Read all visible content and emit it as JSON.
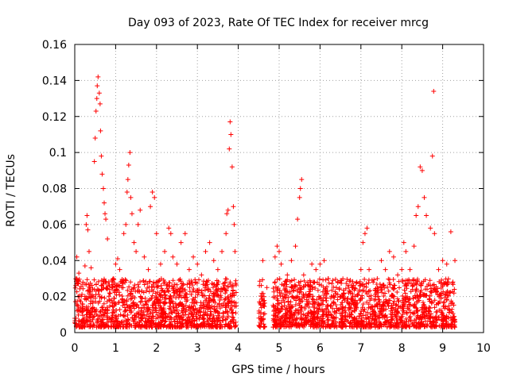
{
  "chart_data": {
    "type": "scatter",
    "title": "Day 093 of 2023, Rate Of TEC Index for receiver mrcg",
    "xlabel": "GPS time / hours",
    "ylabel": "ROTI / TECUs",
    "xlim": [
      0,
      10
    ],
    "ylim": [
      0,
      0.16
    ],
    "x_tick_labels": [
      "0",
      "1",
      "2",
      "3",
      "4",
      "5",
      "6",
      "7",
      "8",
      "9",
      "10"
    ],
    "y_tick_labels": [
      "0",
      "0.02",
      "0.04",
      "0.06",
      "0.08",
      "0.1",
      "0.12",
      "0.14",
      "0.16"
    ],
    "grid": true,
    "marker": "+",
    "series_color": "#ff0000",
    "series": [
      {
        "name": "ROTI",
        "points": [
          [
            0.05,
            0.042
          ],
          [
            0.1,
            0.033
          ],
          [
            0.12,
            0.018
          ],
          [
            0.2,
            0.028
          ],
          [
            0.25,
            0.037
          ],
          [
            0.28,
            0.06
          ],
          [
            0.3,
            0.065
          ],
          [
            0.32,
            0.057
          ],
          [
            0.35,
            0.045
          ],
          [
            0.38,
            0.025
          ],
          [
            0.4,
            0.036
          ],
          [
            0.45,
            0.02
          ],
          [
            0.48,
            0.095
          ],
          [
            0.5,
            0.108
          ],
          [
            0.52,
            0.123
          ],
          [
            0.54,
            0.13
          ],
          [
            0.55,
            0.137
          ],
          [
            0.57,
            0.142
          ],
          [
            0.6,
            0.133
          ],
          [
            0.62,
            0.127
          ],
          [
            0.63,
            0.112
          ],
          [
            0.65,
            0.098
          ],
          [
            0.67,
            0.088
          ],
          [
            0.7,
            0.08
          ],
          [
            0.72,
            0.072
          ],
          [
            0.74,
            0.066
          ],
          [
            0.76,
            0.063
          ],
          [
            0.8,
            0.052
          ],
          [
            0.85,
            0.022
          ],
          [
            0.9,
            0.018
          ],
          [
            0.95,
            0.03
          ],
          [
            1.0,
            0.038
          ],
          [
            1.05,
            0.041
          ],
          [
            1.1,
            0.035
          ],
          [
            1.15,
            0.025
          ],
          [
            1.2,
            0.055
          ],
          [
            1.25,
            0.06
          ],
          [
            1.28,
            0.078
          ],
          [
            1.3,
            0.085
          ],
          [
            1.32,
            0.093
          ],
          [
            1.35,
            0.1
          ],
          [
            1.37,
            0.075
          ],
          [
            1.4,
            0.066
          ],
          [
            1.45,
            0.05
          ],
          [
            1.5,
            0.045
          ],
          [
            1.55,
            0.06
          ],
          [
            1.6,
            0.068
          ],
          [
            1.7,
            0.042
          ],
          [
            1.8,
            0.035
          ],
          [
            1.85,
            0.07
          ],
          [
            1.9,
            0.078
          ],
          [
            1.95,
            0.075
          ],
          [
            2.0,
            0.055
          ],
          [
            2.1,
            0.038
          ],
          [
            2.2,
            0.045
          ],
          [
            2.3,
            0.058
          ],
          [
            2.35,
            0.055
          ],
          [
            2.4,
            0.042
          ],
          [
            2.5,
            0.038
          ],
          [
            2.6,
            0.05
          ],
          [
            2.7,
            0.055
          ],
          [
            2.8,
            0.035
          ],
          [
            2.9,
            0.042
          ],
          [
            3.0,
            0.038
          ],
          [
            3.1,
            0.032
          ],
          [
            3.2,
            0.045
          ],
          [
            3.3,
            0.05
          ],
          [
            3.4,
            0.04
          ],
          [
            3.5,
            0.035
          ],
          [
            3.6,
            0.045
          ],
          [
            3.7,
            0.055
          ],
          [
            3.72,
            0.066
          ],
          [
            3.75,
            0.068
          ],
          [
            3.78,
            0.102
          ],
          [
            3.8,
            0.117
          ],
          [
            3.82,
            0.11
          ],
          [
            3.85,
            0.092
          ],
          [
            3.88,
            0.07
          ],
          [
            3.9,
            0.06
          ],
          [
            3.92,
            0.045
          ],
          [
            4.6,
            0.04
          ],
          [
            4.7,
            0.025
          ],
          [
            4.9,
            0.042
          ],
          [
            4.95,
            0.048
          ],
          [
            5.0,
            0.045
          ],
          [
            5.05,
            0.038
          ],
          [
            5.2,
            0.032
          ],
          [
            5.3,
            0.04
          ],
          [
            5.4,
            0.048
          ],
          [
            5.45,
            0.063
          ],
          [
            5.5,
            0.075
          ],
          [
            5.52,
            0.08
          ],
          [
            5.55,
            0.085
          ],
          [
            5.6,
            0.032
          ],
          [
            5.7,
            0.028
          ],
          [
            5.8,
            0.038
          ],
          [
            5.9,
            0.035
          ],
          [
            6.0,
            0.038
          ],
          [
            6.1,
            0.04
          ],
          [
            6.2,
            0.03
          ],
          [
            6.4,
            0.025
          ],
          [
            6.5,
            0.02
          ],
          [
            6.6,
            0.018
          ],
          [
            6.7,
            0.022
          ],
          [
            6.8,
            0.025
          ],
          [
            6.9,
            0.028
          ],
          [
            7.0,
            0.035
          ],
          [
            7.05,
            0.05
          ],
          [
            7.1,
            0.055
          ],
          [
            7.15,
            0.058
          ],
          [
            7.2,
            0.035
          ],
          [
            7.3,
            0.028
          ],
          [
            7.4,
            0.03
          ],
          [
            7.5,
            0.04
          ],
          [
            7.6,
            0.035
          ],
          [
            7.7,
            0.045
          ],
          [
            7.8,
            0.042
          ],
          [
            7.9,
            0.032
          ],
          [
            8.0,
            0.035
          ],
          [
            8.05,
            0.05
          ],
          [
            8.1,
            0.045
          ],
          [
            8.2,
            0.035
          ],
          [
            8.3,
            0.048
          ],
          [
            8.35,
            0.065
          ],
          [
            8.4,
            0.07
          ],
          [
            8.45,
            0.092
          ],
          [
            8.5,
            0.09
          ],
          [
            8.55,
            0.075
          ],
          [
            8.6,
            0.065
          ],
          [
            8.7,
            0.058
          ],
          [
            8.75,
            0.098
          ],
          [
            8.78,
            0.134
          ],
          [
            8.8,
            0.055
          ],
          [
            8.9,
            0.035
          ],
          [
            9.0,
            0.04
          ],
          [
            9.1,
            0.038
          ],
          [
            9.2,
            0.056
          ],
          [
            9.3,
            0.04
          ]
        ]
      }
    ],
    "dense_band": {
      "x_ranges": [
        [
          0.0,
          3.95
        ],
        [
          4.5,
          4.65
        ],
        [
          4.85,
          9.3
        ]
      ],
      "y_min": 0.003,
      "y_max": 0.03
    }
  }
}
